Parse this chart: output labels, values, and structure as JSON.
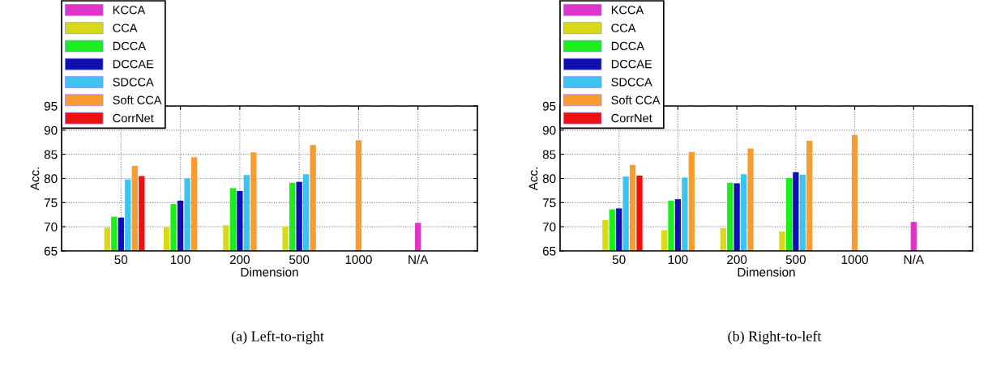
{
  "chart_data": [
    {
      "type": "bar",
      "xlabel": "Dimension",
      "ylabel": "Acc.",
      "categories": [
        "50",
        "100",
        "200",
        "500",
        "1000",
        "N/A"
      ],
      "ylim": [
        65,
        95
      ],
      "yticks": [
        65,
        70,
        75,
        80,
        85,
        90,
        95
      ],
      "grid": true,
      "legend": "top left",
      "annotations": [
        "(a) Left-to-right"
      ],
      "series": [
        {
          "name": "KCCA",
          "color": "#e033c8",
          "values": [
            null,
            null,
            null,
            null,
            null,
            70.8
          ]
        },
        {
          "name": "CCA",
          "color": "#d9d91a",
          "values": [
            69.8,
            69.9,
            70.3,
            70.0,
            null,
            null
          ]
        },
        {
          "name": "DCCA",
          "color": "#1aef1a",
          "values": [
            72.1,
            74.7,
            78.0,
            79.1,
            null,
            null
          ]
        },
        {
          "name": "DCCAE",
          "color": "#1010b0",
          "values": [
            71.9,
            75.4,
            77.4,
            79.3,
            null,
            null
          ]
        },
        {
          "name": "SDCCA",
          "color": "#3cc4ee",
          "values": [
            79.8,
            80.0,
            80.7,
            80.9,
            null,
            null
          ]
        },
        {
          "name": "Soft CCA",
          "color": "#f89c30",
          "values": [
            82.6,
            84.4,
            85.4,
            86.9,
            87.9,
            null
          ]
        },
        {
          "name": "CorrNet",
          "color": "#f00f0f",
          "values": [
            80.5,
            null,
            null,
            null,
            null,
            null
          ]
        }
      ]
    },
    {
      "type": "bar",
      "xlabel": "Dimension",
      "ylabel": "Acc.",
      "categories": [
        "50",
        "100",
        "200",
        "500",
        "1000",
        "N/A"
      ],
      "ylim": [
        65,
        95
      ],
      "yticks": [
        65,
        70,
        75,
        80,
        85,
        90,
        95
      ],
      "grid": true,
      "legend": "top left",
      "annotations": [
        "(b) Right-to-left"
      ],
      "series": [
        {
          "name": "KCCA",
          "color": "#e033c8",
          "values": [
            null,
            null,
            null,
            null,
            null,
            71.0
          ]
        },
        {
          "name": "CCA",
          "color": "#d9d91a",
          "values": [
            71.4,
            69.3,
            69.7,
            69.0,
            null,
            null
          ]
        },
        {
          "name": "DCCA",
          "color": "#1aef1a",
          "values": [
            73.6,
            75.4,
            79.1,
            80.1,
            null,
            null
          ]
        },
        {
          "name": "DCCAE",
          "color": "#1010b0",
          "values": [
            73.8,
            75.7,
            79.0,
            81.3,
            null,
            null
          ]
        },
        {
          "name": "SDCCA",
          "color": "#3cc4ee",
          "values": [
            80.4,
            80.2,
            80.9,
            80.8,
            null,
            null
          ]
        },
        {
          "name": "Soft CCA",
          "color": "#f89c30",
          "values": [
            82.8,
            85.5,
            86.2,
            87.8,
            89.0,
            null
          ]
        },
        {
          "name": "CorrNet",
          "color": "#f00f0f",
          "values": [
            80.6,
            null,
            null,
            null,
            null,
            null
          ]
        }
      ]
    }
  ]
}
